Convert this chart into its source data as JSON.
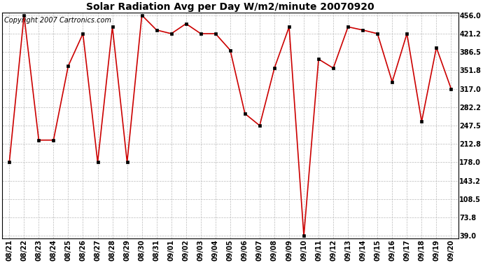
{
  "title": "Solar Radiation Avg per Day W/m2/minute 20070920",
  "copyright": "Copyright 2007 Cartronics.com",
  "labels": [
    "08/21",
    "08/22",
    "08/23",
    "08/24",
    "08/25",
    "08/26",
    "08/27",
    "08/28",
    "08/29",
    "08/30",
    "08/31",
    "09/01",
    "09/02",
    "09/03",
    "09/04",
    "09/05",
    "09/06",
    "09/07",
    "09/08",
    "09/09",
    "09/10",
    "09/11",
    "09/12",
    "09/13",
    "09/14",
    "09/15",
    "09/16",
    "09/17",
    "09/18",
    "09/19",
    "09/20"
  ],
  "values": [
    178.0,
    456.0,
    220.0,
    220.0,
    360.0,
    421.2,
    178.0,
    434.0,
    178.0,
    456.0,
    428.0,
    421.2,
    440.0,
    421.2,
    421.2,
    390.0,
    270.0,
    247.5,
    356.0,
    434.0,
    39.0,
    373.0,
    356.0,
    434.0,
    428.0,
    421.2,
    330.0,
    421.2,
    255.0,
    395.0,
    317.0
  ],
  "line_color": "#cc0000",
  "marker_color": "#000000",
  "background_color": "#ffffff",
  "grid_color": "#bbbbbb",
  "yticks": [
    39.0,
    73.8,
    108.5,
    143.2,
    178.0,
    212.8,
    247.5,
    282.2,
    317.0,
    351.8,
    386.5,
    421.2,
    456.0
  ],
  "ymin": 39.0,
  "ymax": 456.0,
  "title_fontsize": 10,
  "tick_fontsize": 7,
  "copyright_fontsize": 7
}
